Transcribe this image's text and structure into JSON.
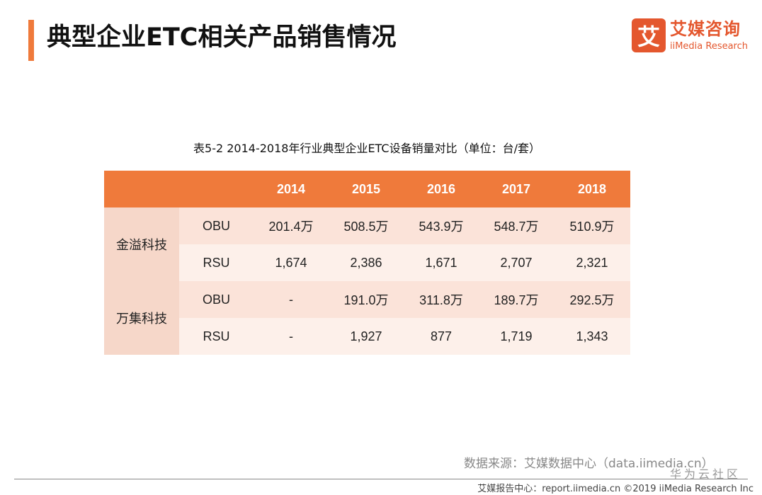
{
  "header": {
    "title": "典型企业ETC相关产品销售情况"
  },
  "logo": {
    "mark": "艾",
    "cn": "艾媒咨询",
    "en": "iiMedia Research"
  },
  "table": {
    "caption": "表5-2 2014-2018年行业典型企业ETC设备销量对比（单位：台/套）",
    "columns": [
      "",
      "",
      "2014",
      "2015",
      "2016",
      "2017",
      "2018"
    ],
    "groups": [
      {
        "company": "金溢科技",
        "rows": [
          {
            "product": "OBU",
            "values": [
              "201.4万",
              "508.5万",
              "543.9万",
              "548.7万",
              "510.9万"
            ]
          },
          {
            "product": "RSU",
            "values": [
              "1,674",
              "2,386",
              "1,671",
              "2,707",
              "2,321"
            ]
          }
        ]
      },
      {
        "company": "万集科技",
        "rows": [
          {
            "product": "OBU",
            "values": [
              "-",
              "191.0万",
              "311.8万",
              "189.7万",
              "292.5万"
            ]
          },
          {
            "product": "RSU",
            "values": [
              "-",
              "1,927",
              "877",
              "1,719",
              "1,343"
            ]
          }
        ]
      }
    ]
  },
  "source": {
    "text": "数据来源：艾媒数据中心（data.iimedia.cn）"
  },
  "watermark": {
    "text": "华为云社区"
  },
  "footer": {
    "text": "艾媒报告中心：report.iimedia.cn  ©2019  iiMedia Research Inc"
  },
  "colors": {
    "accent": "#ef7a3b",
    "brand": "#e4572e",
    "row_light": "#fdf0ea",
    "row_mid": "#fbe3d9",
    "company_bg": "#f6d7c9"
  }
}
